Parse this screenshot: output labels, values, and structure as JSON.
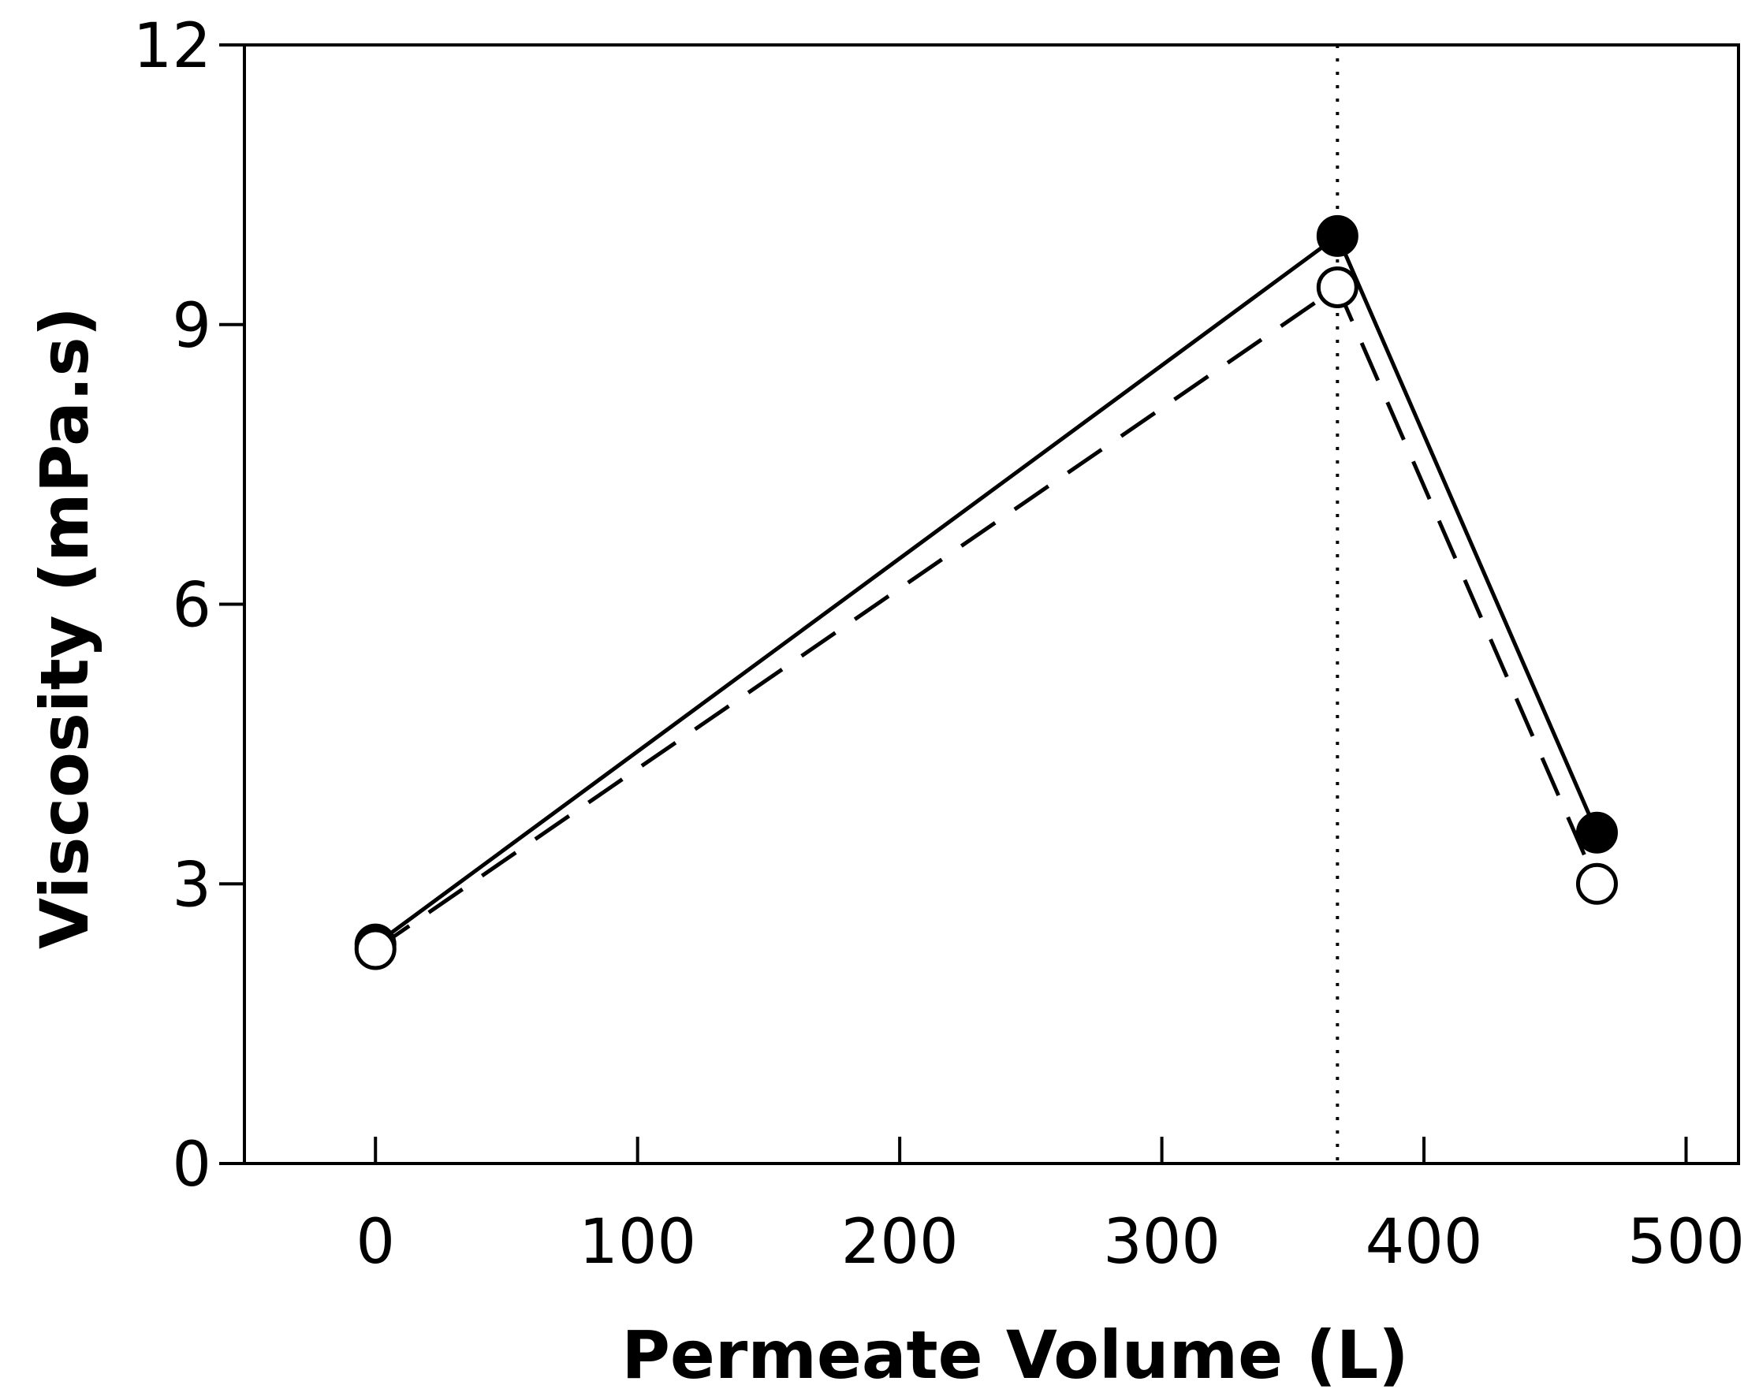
{
  "chart_data": {
    "type": "line",
    "title": "",
    "xlabel": "Permeate Volume (L)",
    "ylabel": "Viscosity (mPa.s)",
    "xlim": [
      -50,
      520
    ],
    "ylim": [
      0,
      12
    ],
    "xticks": [
      0,
      100,
      200,
      300,
      400,
      500
    ],
    "yticks": [
      0,
      3,
      6,
      9,
      12
    ],
    "xtick_labels": [
      "0",
      "100",
      "200",
      "300",
      "400",
      "500"
    ],
    "ytick_labels": [
      "0",
      "3",
      "6",
      "9",
      "12"
    ],
    "grid": false,
    "legend": "none",
    "reference_line": {
      "orientation": "vertical",
      "x": 367,
      "style": "dotted"
    },
    "series": [
      {
        "name": "filled-circles",
        "marker": "filled-circle",
        "line": "solid",
        "x": [
          0,
          367,
          466
        ],
        "y": [
          2.35,
          9.95,
          3.55
        ]
      },
      {
        "name": "open-circles",
        "marker": "open-circle",
        "line": "dashed",
        "x": [
          0,
          367,
          466
        ],
        "y": [
          2.3,
          9.4,
          3.0
        ]
      }
    ]
  }
}
